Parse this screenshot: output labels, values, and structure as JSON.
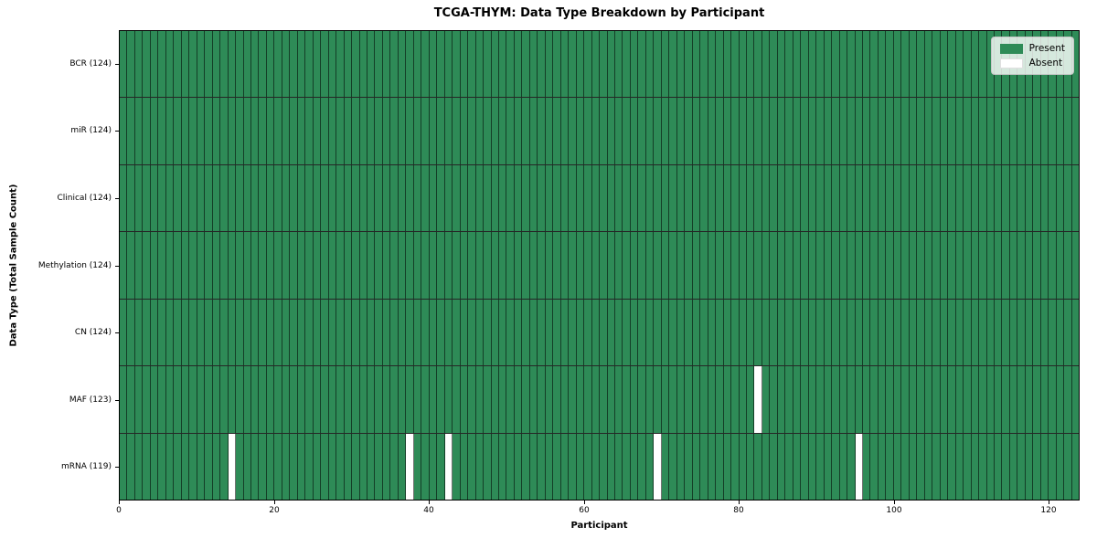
{
  "chart_data": {
    "type": "heatmap",
    "title": "TCGA-THYM: Data Type Breakdown by Participant",
    "xlabel": "Participant",
    "ylabel": "Data Type (Total Sample Count)",
    "n_participants": 124,
    "xlim": [
      0,
      124
    ],
    "x_ticks": [
      0,
      20,
      40,
      60,
      80,
      100,
      120
    ],
    "grid": "cell-edges",
    "legend_position": "upper right",
    "legend": [
      {
        "label": "Present",
        "color": "#2e8b57"
      },
      {
        "label": "Absent",
        "color": "#ffffff"
      }
    ],
    "colors": {
      "present": "#2e8b57",
      "absent": "#ffffff"
    },
    "rows": [
      {
        "label": "BCR (124)",
        "data_type": "BCR",
        "present_count": 124,
        "absent_participants": []
      },
      {
        "label": "miR (124)",
        "data_type": "miR",
        "present_count": 124,
        "absent_participants": []
      },
      {
        "label": "Clinical (124)",
        "data_type": "Clinical",
        "present_count": 124,
        "absent_participants": []
      },
      {
        "label": "Methylation (124)",
        "data_type": "Methylation",
        "present_count": 124,
        "absent_participants": []
      },
      {
        "label": "CN (124)",
        "data_type": "CN",
        "present_count": 124,
        "absent_participants": []
      },
      {
        "label": "MAF (123)",
        "data_type": "MAF",
        "present_count": 123,
        "absent_participants": [
          82
        ]
      },
      {
        "label": "mRNA (119)",
        "data_type": "mRNA",
        "present_count": 119,
        "absent_participants": [
          14,
          37,
          42,
          69,
          95
        ]
      }
    ]
  }
}
